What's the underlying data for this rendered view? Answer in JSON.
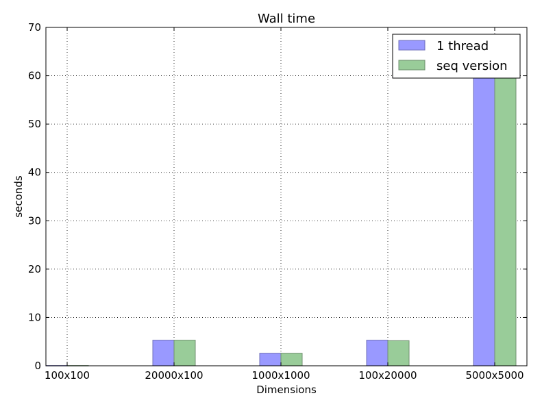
{
  "chart_data": {
    "type": "bar",
    "title": "Wall time",
    "xlabel": "Dimensions",
    "ylabel": "seconds",
    "categories": [
      "100x100",
      "20000x100",
      "1000x1000",
      "100x20000",
      "5000x5000"
    ],
    "series": [
      {
        "name": "1 thread",
        "values": [
          0.05,
          5.3,
          2.6,
          5.3,
          65.0
        ],
        "color": "#9999ff"
      },
      {
        "name": "seq version",
        "values": [
          0.05,
          5.3,
          2.6,
          5.2,
          65.0
        ],
        "color": "#99cc99"
      }
    ],
    "ylim": [
      0,
      70
    ],
    "yticks": [
      0,
      10,
      20,
      30,
      40,
      50,
      60,
      70
    ],
    "grid": true,
    "legend_position": "top-right"
  }
}
